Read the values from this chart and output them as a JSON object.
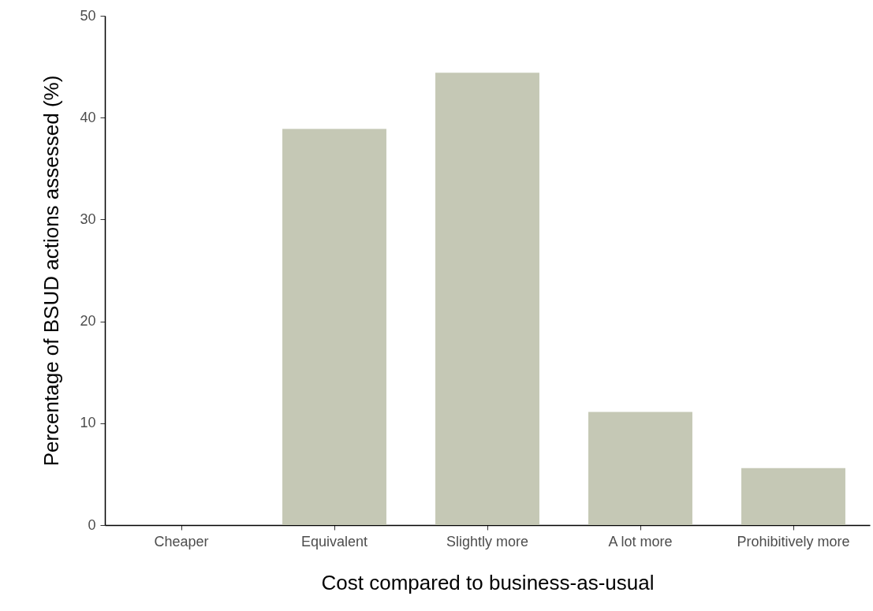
{
  "chart_data": {
    "type": "bar",
    "xlabel": "Cost compared to business-as-usual",
    "ylabel": "Percentage of BSUD actions assessed (%)",
    "categories": [
      "Cheaper",
      "Equivalent",
      "Slightly more",
      "A lot more",
      "Prohibitively more"
    ],
    "values": [
      0,
      38.9,
      44.4,
      11.1,
      5.6
    ],
    "color": "#c5c8b5",
    "ylim": [
      0,
      50
    ],
    "yticks": [
      0,
      10,
      20,
      30,
      40,
      50
    ],
    "grid": false
  }
}
